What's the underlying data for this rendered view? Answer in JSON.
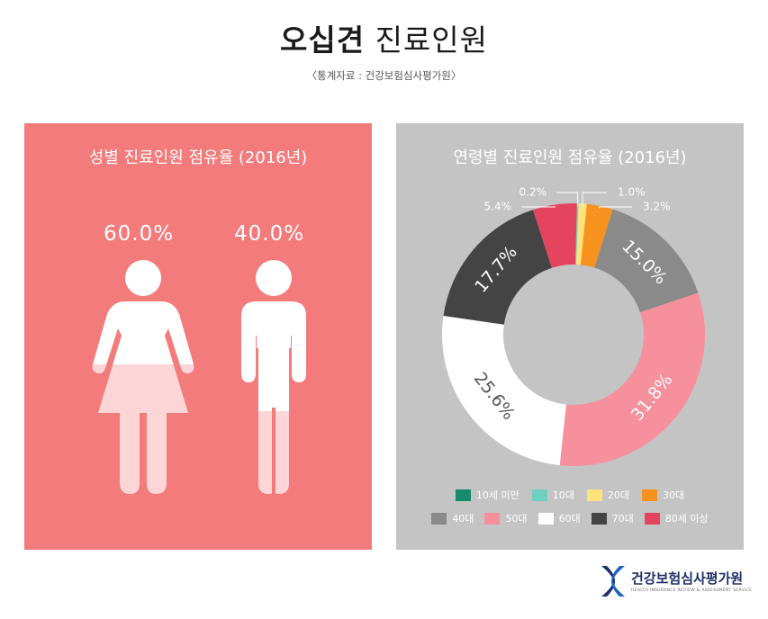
{
  "header": {
    "title_bold": "오십견",
    "title_regular": "진료인원",
    "source": "〈통계자료 : 건강보험심사평가원〉"
  },
  "chart_data": [
    {
      "type": "pictograph",
      "title": "성별 진료인원 점유율 (2016년)",
      "categories": [
        "female",
        "male"
      ],
      "values": [
        60.0,
        40.0
      ],
      "labels": [
        "60.0%",
        "40.0%"
      ],
      "unit": "%"
    },
    {
      "type": "pie",
      "title": "연령별 진료인원 점유율 (2016년)",
      "categories": [
        "10세 미만",
        "10대",
        "20대",
        "30대",
        "40대",
        "50대",
        "60대",
        "70대",
        "80세 이상"
      ],
      "values": [
        0.0,
        0.2,
        1.0,
        3.2,
        15.0,
        31.8,
        25.6,
        17.7,
        5.4
      ],
      "labels": [
        "",
        "0.2%",
        "1.0%",
        "3.2%",
        "15.0%",
        "31.8%",
        "25.6%",
        "17.7%",
        "5.4%"
      ],
      "colors": [
        "#178a6c",
        "#6fd0c0",
        "#ffe27a",
        "#f8921e",
        "#8a8a8a",
        "#f6909c",
        "#ffffff",
        "#444444",
        "#e5445f"
      ],
      "legend_position": "bottom",
      "donut": true
    }
  ],
  "colors": {
    "left_panel": "#f47b7b",
    "right_panel": "#c4c4c4",
    "figure_fill": "#ffffff",
    "figure_tint": "#fcd6d6"
  },
  "logo": {
    "name": "건강보험심사평가원",
    "subtitle": "HEALTH INSURANCE REVIEW & ASSESSMENT SERVICE"
  }
}
